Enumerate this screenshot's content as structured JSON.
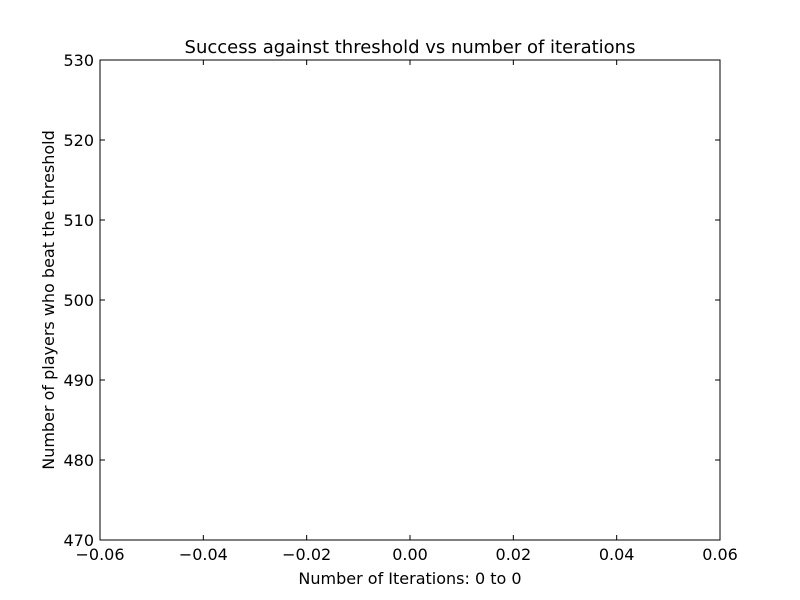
{
  "chart_data": {
    "type": "line",
    "title": "Success against threshold vs number of iterations",
    "xlabel": "Number of Iterations: 0 to 0",
    "ylabel": "Number of players who beat the threshold",
    "xlim": [
      -0.06,
      0.06
    ],
    "ylim": [
      470,
      530
    ],
    "xticks": [
      -0.06,
      -0.04,
      -0.02,
      0.0,
      0.02,
      0.04,
      0.06
    ],
    "xtick_labels": [
      "−0.06",
      "−0.04",
      "−0.02",
      "0.00",
      "0.02",
      "0.04",
      "0.06"
    ],
    "yticks": [
      470,
      480,
      490,
      500,
      510,
      520,
      530
    ],
    "ytick_labels": [
      "470",
      "480",
      "490",
      "500",
      "510",
      "520",
      "530"
    ],
    "series": [],
    "grid": false,
    "legend": false
  }
}
